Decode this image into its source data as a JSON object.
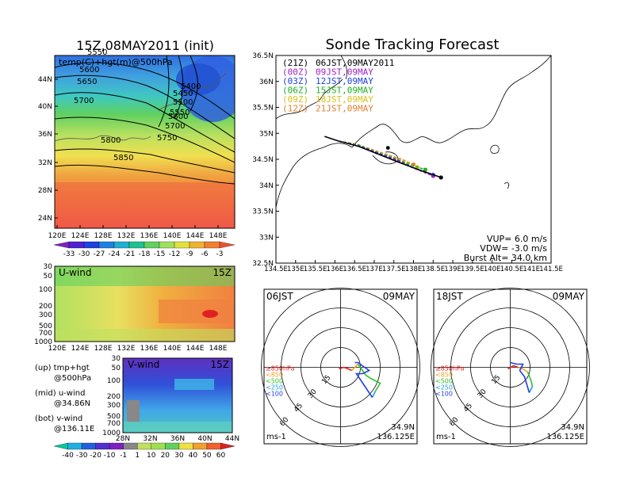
{
  "left": {
    "title": "15Z,08MAY2011 (init)",
    "map": {
      "overlay_label": "temp(C)+hgt(m)@500hPa",
      "contour_labels": [
        "5550",
        "5600",
        "5650",
        "5700",
        "5800",
        "5850",
        "5400",
        "5450",
        "5500",
        "5550",
        "5600",
        "5700",
        "5750"
      ],
      "lat_ticks": [
        "44N",
        "40N",
        "36N",
        "32N",
        "28N",
        "24N"
      ],
      "lon_ticks": [
        "120E",
        "124E",
        "128E",
        "132E",
        "136E",
        "140E",
        "144E",
        "148E"
      ],
      "colorbar_labels": [
        "-33",
        "-30",
        "-27",
        "-24",
        "-21",
        "-18",
        "-15",
        "-12",
        "-9",
        "-6",
        "-3"
      ]
    },
    "uwind": {
      "label": "U-wind",
      "time": "15Z",
      "p_ticks": [
        "30",
        "50",
        "100",
        "200",
        "300",
        "500",
        "700",
        "1000"
      ],
      "lon_ticks": [
        "120E",
        "124E",
        "128E",
        "132E",
        "136E",
        "140E",
        "144E",
        "148E"
      ]
    },
    "vwind": {
      "label": "V-wind",
      "time": "15Z",
      "p_ticks": [
        "30",
        "50",
        "100",
        "200",
        "300",
        "500",
        "700",
        "1000"
      ],
      "lat_ticks": [
        "28N",
        "32N",
        "36N",
        "40N",
        "44N"
      ],
      "colorbar_labels": [
        "-40",
        "-30",
        "-20",
        "-10",
        "-1",
        "1",
        "10",
        "20",
        "30",
        "40",
        "50",
        "60"
      ]
    },
    "legend": {
      "lines": [
        "(up) tmp+hgt",
        "@500hPa",
        "(mid) u-wind",
        "@34.86N",
        "(bot) v-wind",
        "@136.11E"
      ]
    }
  },
  "right": {
    "title": "Sonde Tracking Forecast",
    "map": {
      "lat_ticks": [
        "36.5N",
        "36N",
        "35.5N",
        "35N",
        "34.5N",
        "34N",
        "33.5N",
        "33N",
        "32.5N"
      ],
      "lon_ticks": [
        "134.5E",
        "135E",
        "135.5E",
        "136E",
        "136.5E",
        "137E",
        "137.5E",
        "138E",
        "138.5E",
        "139E",
        "139.5E",
        "140E",
        "140.5E",
        "141E",
        "141.5E"
      ],
      "launches": [
        {
          "code": "(21Z)",
          "label": "06JST,09MAY2011",
          "color": "#000000"
        },
        {
          "code": "(00Z)",
          "label": "09JST,09MAY",
          "color": "#a020c0"
        },
        {
          "code": "(03Z)",
          "label": "12JST,09MAY",
          "color": "#2040e0"
        },
        {
          "code": "(06Z)",
          "label": "15JST,09MAY",
          "color": "#20b020"
        },
        {
          "code": "(09Z)",
          "label": "18JST,09MAY",
          "color": "#d8c020"
        },
        {
          "code": "(12Z)",
          "label": "21JST,09MAY",
          "color": "#e08030"
        }
      ],
      "params": [
        "VUP= 6.0 m/s",
        "VDW= -3.0 m/s",
        "Burst Alt= 34.0 km"
      ]
    },
    "hodo_left": {
      "time_label": "06JST",
      "date_label": "09MAY",
      "ring_labels": [
        "15",
        "30",
        "45",
        "60"
      ],
      "levels": [
        "≥850hPa",
        "<850",
        "<500",
        "<250",
        "<100"
      ],
      "unit": "ms-1",
      "lat": "34.9N",
      "lon": "136.125E"
    },
    "hodo_right": {
      "time_label": "18JST",
      "date_label": "09MAY",
      "ring_labels": [
        "15",
        "30",
        "45",
        "60"
      ],
      "levels": [
        "≥850hPa",
        "<850",
        "<500",
        "<250",
        "<100"
      ],
      "unit": "ms-1",
      "lat": "34.9N",
      "lon": "136.125E"
    }
  },
  "colors": {
    "level_colors": [
      "#e02020",
      "#f0a020",
      "#30c030",
      "#20a0e0",
      "#2040e0"
    ]
  },
  "chart_data": [
    {
      "type": "heatmap",
      "title": "15Z,08MAY2011 (init)",
      "subtitle": "temp(C)+hgt(m)@500hPa",
      "xlim": [
        120,
        150
      ],
      "ylim": [
        22,
        48
      ],
      "colorbar": [
        -33,
        -30,
        -27,
        -24,
        -21,
        -18,
        -15,
        -12,
        -9,
        -6,
        -3
      ],
      "contour_levels": [
        5400,
        5450,
        5500,
        5550,
        5600,
        5650,
        5700,
        5750,
        5800,
        5850
      ]
    },
    {
      "type": "heatmap",
      "title": "U-wind",
      "xlim": [
        120,
        150
      ],
      "ylim_hpa": [
        1000,
        30
      ]
    },
    {
      "type": "heatmap",
      "title": "V-wind",
      "xlim": [
        28,
        44
      ],
      "ylim_hpa": [
        1000,
        30
      ],
      "colorbar": [
        -40,
        -30,
        -20,
        -10,
        -1,
        1,
        10,
        20,
        30,
        40,
        50,
        60
      ]
    },
    {
      "type": "line",
      "title": "Sonde Tracking Forecast",
      "xlim": [
        134.5,
        141.5
      ],
      "ylim": [
        32.5,
        36.5
      ],
      "series": [
        {
          "name": "(21Z) 06JST,09MAY2011",
          "color": "#000000",
          "points": [
            [
              136.1,
              34.85
            ],
            [
              136.6,
              34.75
            ],
            [
              137.1,
              34.6
            ],
            [
              137.6,
              34.45
            ],
            [
              138.2,
              34.28
            ],
            [
              138.7,
              34.15
            ]
          ]
        },
        {
          "name": "(00Z) 09JST,09MAY",
          "color": "#a020c0",
          "points": [
            [
              136.1,
              34.85
            ],
            [
              136.6,
              34.76
            ],
            [
              137.1,
              34.6
            ],
            [
              137.6,
              34.47
            ],
            [
              138.1,
              34.3
            ],
            [
              138.5,
              34.18
            ]
          ]
        },
        {
          "name": "(03Z) 12JST,09MAY",
          "color": "#2040e0",
          "points": [
            [
              136.1,
              34.85
            ],
            [
              136.6,
              34.76
            ],
            [
              137.1,
              34.62
            ],
            [
              137.6,
              34.48
            ],
            [
              138.0,
              34.33
            ],
            [
              138.5,
              34.2
            ]
          ]
        },
        {
          "name": "(06Z) 15JST,09MAY",
          "color": "#20b020",
          "points": [
            [
              136.1,
              34.85
            ],
            [
              136.6,
              34.78
            ],
            [
              137.0,
              34.65
            ],
            [
              137.5,
              34.52
            ],
            [
              137.9,
              34.4
            ],
            [
              138.3,
              34.3
            ]
          ]
        },
        {
          "name": "(09Z) 18JST,09MAY",
          "color": "#d8c020",
          "points": [
            [
              136.1,
              34.85
            ],
            [
              136.55,
              34.78
            ],
            [
              137.0,
              34.66
            ],
            [
              137.4,
              34.56
            ],
            [
              137.8,
              34.44
            ],
            [
              138.1,
              34.35
            ]
          ]
        },
        {
          "name": "(12Z) 21JST,09MAY",
          "color": "#e08030",
          "points": [
            [
              136.1,
              34.85
            ],
            [
              136.5,
              34.8
            ],
            [
              136.9,
              34.7
            ],
            [
              137.3,
              34.6
            ],
            [
              137.7,
              34.5
            ],
            [
              138.0,
              34.4
            ]
          ]
        }
      ]
    }
  ]
}
